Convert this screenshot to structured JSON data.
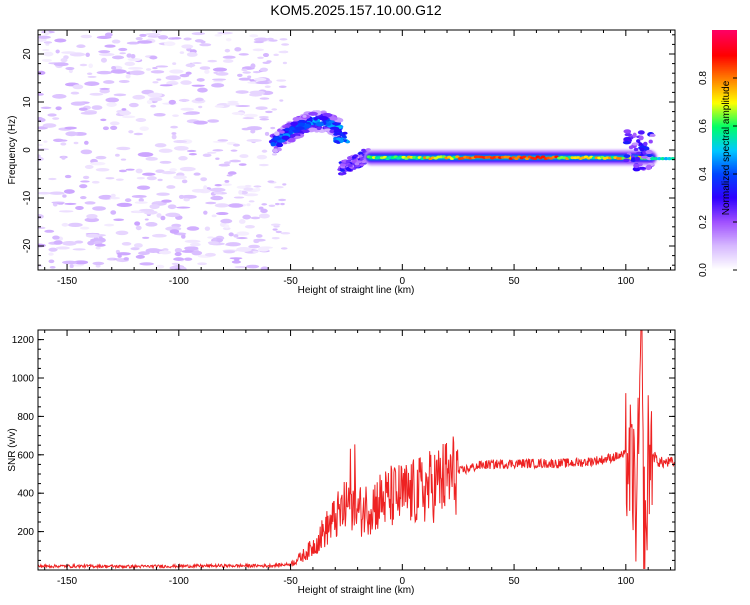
{
  "figure": {
    "title": "KOM5.2025.157.10.00.G12"
  },
  "chart_data": [
    {
      "type": "heatmap",
      "xlabel": "Height of straight line (km)",
      "ylabel": "Frequency (Hz)",
      "xlim": [
        -163,
        122
      ],
      "ylim": [
        -25,
        25
      ],
      "xticks": [
        -150,
        -100,
        -50,
        0,
        50,
        100
      ],
      "yticks": [
        -20,
        -10,
        0,
        10,
        20
      ],
      "grid": false,
      "colorbar": {
        "label": "Normalized spectral amplitude",
        "range": [
          0,
          1
        ],
        "ticks": [
          0.0,
          0.2,
          0.4,
          0.6,
          0.8
        ],
        "colors": [
          "#ffffff",
          "#d6b8ff",
          "#a050ff",
          "#3000ff",
          "#0044ff",
          "#00c8ff",
          "#00ff66",
          "#ffff00",
          "#ff8000",
          "#ff0000",
          "#ff0060"
        ]
      },
      "features": [
        {
          "x_range": [
            -163,
            -60
          ],
          "freq_range": [
            -25,
            25
          ],
          "amplitude": 0.05,
          "kind": "scattered noise"
        },
        {
          "x_range": [
            -58,
            -28
          ],
          "freq_center_at_start": 1,
          "freq_center_peak": 6,
          "amplitude": 0.4,
          "kind": "arc"
        },
        {
          "x_range": [
            -28,
            -15
          ],
          "freq_center_at_start": -4,
          "freq_center_at_end": -1,
          "amplitude": 0.3,
          "kind": "rise"
        },
        {
          "x_range": [
            -15,
            112
          ],
          "freq_center": -1.6,
          "amplitude": 0.7,
          "kind": "main trace"
        }
      ]
    },
    {
      "type": "line",
      "xlabel": "Height of straight line (km)",
      "ylabel": "SNR (v/v)",
      "xlim": [
        -163,
        122
      ],
      "ylim": [
        0,
        1250
      ],
      "xticks": [
        -150,
        -100,
        -50,
        0,
        50,
        100
      ],
      "yticks": [
        200,
        400,
        600,
        800,
        1000,
        1200
      ],
      "grid": false,
      "series": [
        {
          "color": "#ee2222",
          "x": [
            -163,
            -140,
            -120,
            -100,
            -80,
            -60,
            -50,
            -45,
            -40,
            -35,
            -30,
            -25,
            -22,
            -20,
            -15,
            -10,
            -5,
            0,
            5,
            10,
            15,
            20,
            25,
            30,
            35,
            40,
            50,
            60,
            70,
            80,
            90,
            95,
            100,
            103,
            105,
            106,
            107,
            108,
            109,
            110,
            112,
            115,
            122
          ],
          "y": [
            20,
            20,
            18,
            20,
            22,
            22,
            30,
            70,
            120,
            200,
            270,
            330,
            380,
            300,
            330,
            360,
            380,
            390,
            400,
            420,
            450,
            480,
            510,
            530,
            545,
            550,
            555,
            555,
            555,
            560,
            575,
            590,
            600,
            500,
            300,
            800,
            1200,
            300,
            100,
            600,
            600,
            560,
            560
          ],
          "notes": "noisy SNR trace: ~20 baseline, rising between -50 and 30 km, plateau ~550, strong spikes near 105-110 km"
        }
      ]
    }
  ]
}
